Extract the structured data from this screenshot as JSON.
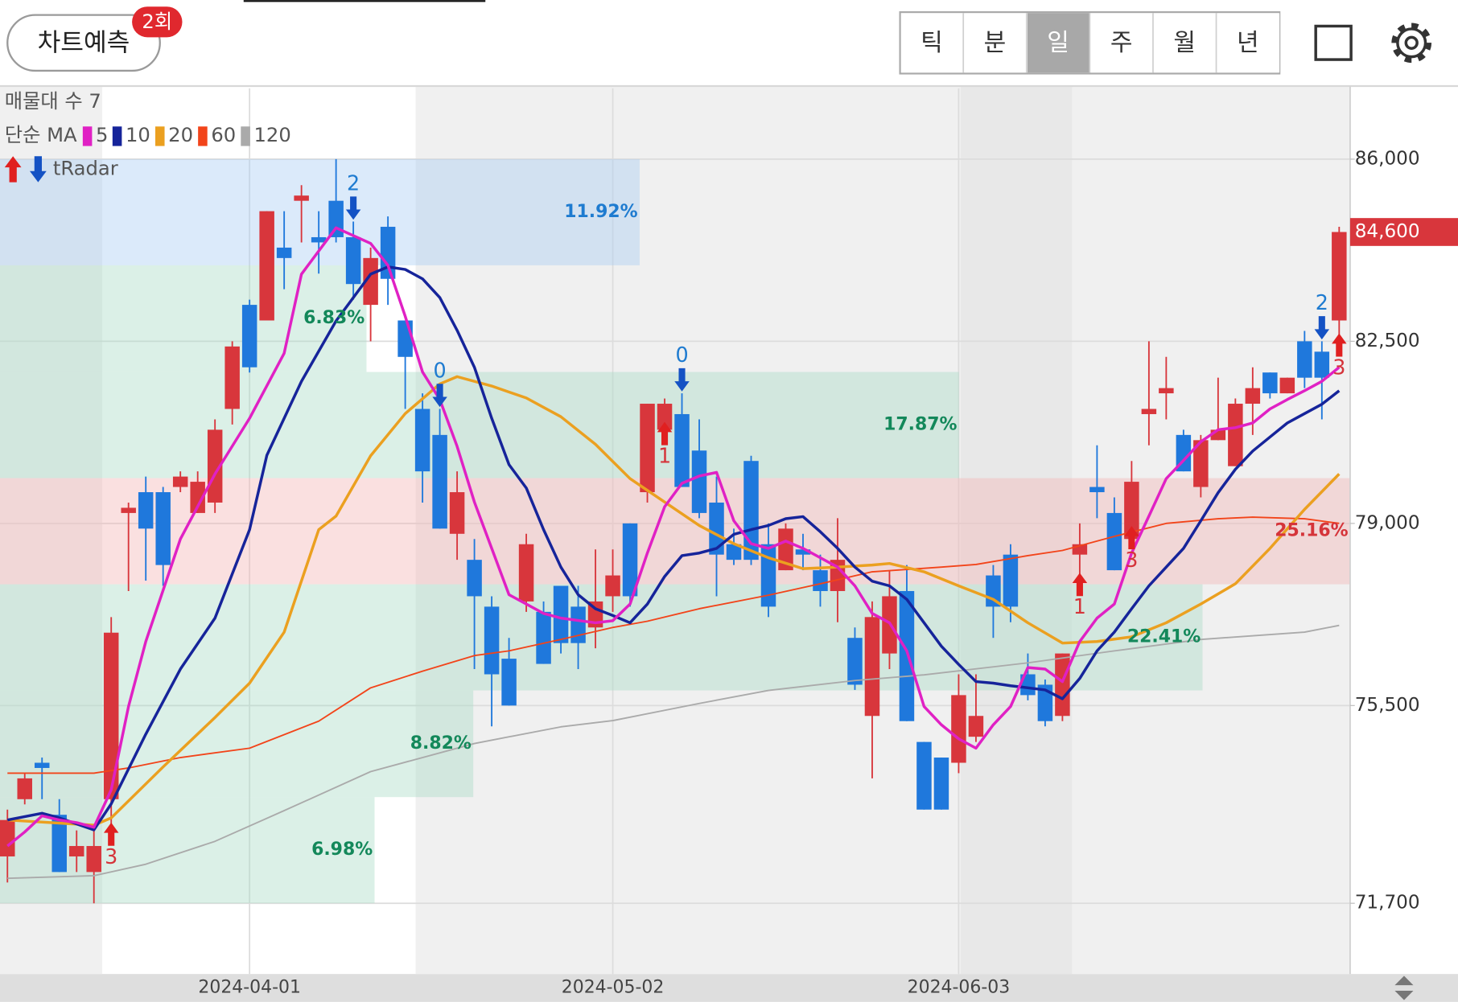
{
  "header": {
    "button": "차트예측",
    "badge": "2회",
    "tabs": [
      "틱",
      "분",
      "일",
      "주",
      "월",
      "년"
    ],
    "selected_tab": "일"
  },
  "legend": {
    "profile": "매물대 수 7",
    "ma_label": "단순 MA",
    "radar": "tRadar"
  },
  "chart_data": {
    "type": "candlestick",
    "categories": [
      null,
      null,
      null,
      null,
      null,
      null,
      null,
      null,
      null,
      null,
      null,
      null,
      null,
      null,
      "2024-04-01",
      null,
      null,
      null,
      null,
      null,
      null,
      null,
      null,
      null,
      null,
      null,
      null,
      null,
      null,
      null,
      null,
      null,
      null,
      null,
      null,
      "2024-05-02",
      null,
      null,
      null,
      null,
      null,
      null,
      null,
      null,
      null,
      null,
      null,
      null,
      null,
      null,
      null,
      null,
      null,
      null,
      null,
      "2024-06-03",
      null,
      null,
      null,
      null,
      null,
      null,
      null,
      null,
      null,
      null,
      null,
      null,
      null,
      null,
      null,
      null,
      null,
      null,
      null,
      null,
      null,
      null
    ],
    "open": [
      72600,
      73700,
      74400,
      73400,
      72600,
      72300,
      73700,
      79200,
      79600,
      79600,
      79700,
      79200,
      79400,
      81200,
      83200,
      82900,
      84300,
      85200,
      84500,
      85200,
      84500,
      83200,
      84700,
      82900,
      81200,
      80700,
      78800,
      78300,
      77400,
      76400,
      77500,
      77300,
      77800,
      77400,
      77000,
      77600,
      79000,
      79600,
      80800,
      81100,
      80400,
      79400,
      78600,
      80200,
      78600,
      78100,
      78500,
      78100,
      77700,
      76800,
      75300,
      76500,
      77700,
      74800,
      74500,
      74400,
      74900,
      78000,
      78400,
      76100,
      75900,
      75300,
      78400,
      79700,
      79200,
      78700,
      81100,
      81500,
      80700,
      79700,
      80600,
      80100,
      81300,
      81900,
      81500,
      82500,
      82300,
      82900
    ],
    "high": [
      73500,
      74200,
      74500,
      73700,
      73100,
      73100,
      77200,
      79400,
      79900,
      79700,
      80000,
      80000,
      81000,
      82500,
      83300,
      85000,
      85000,
      85500,
      85000,
      86000,
      84800,
      84300,
      84900,
      82900,
      81500,
      81200,
      80000,
      78700,
      77600,
      76800,
      78800,
      77500,
      77800,
      77800,
      78500,
      78500,
      79000,
      81300,
      81400,
      81500,
      81000,
      79900,
      78900,
      80300,
      79000,
      79000,
      78800,
      78400,
      79100,
      77000,
      77500,
      78100,
      78200,
      74800,
      74500,
      76100,
      76100,
      78200,
      78600,
      76500,
      76000,
      76500,
      79000,
      80500,
      79500,
      80200,
      82500,
      82200,
      80800,
      80700,
      81800,
      81400,
      82000,
      81900,
      81800,
      82700,
      82500,
      84700
    ],
    "low": [
      72100,
      73600,
      73700,
      72300,
      72300,
      71700,
      73000,
      77700,
      77900,
      77800,
      79600,
      79200,
      79200,
      80900,
      81900,
      82900,
      83500,
      84400,
      83800,
      84400,
      83300,
      82500,
      83200,
      81200,
      79400,
      78900,
      78300,
      76200,
      75100,
      75500,
      77300,
      76300,
      76500,
      76200,
      76600,
      77300,
      77400,
      79400,
      80700,
      79700,
      79100,
      77600,
      78200,
      78200,
      77200,
      78100,
      78100,
      77400,
      77100,
      75800,
      74100,
      76200,
      75200,
      73500,
      73500,
      74200,
      74800,
      76800,
      77100,
      75600,
      75100,
      75200,
      77800,
      79100,
      78100,
      78700,
      80500,
      81000,
      80000,
      79500,
      80600,
      80100,
      80700,
      81400,
      81500,
      81600,
      81000,
      82400
    ],
    "close": [
      73300,
      74100,
      74300,
      72300,
      72800,
      72800,
      76900,
      79300,
      78900,
      78200,
      79900,
      79800,
      80800,
      82400,
      82000,
      85000,
      84100,
      85300,
      84400,
      84500,
      83600,
      84100,
      83700,
      82200,
      80000,
      78900,
      79600,
      77600,
      76100,
      75500,
      78600,
      76300,
      76700,
      76700,
      77500,
      78000,
      77600,
      81300,
      81300,
      79700,
      79200,
      78400,
      78300,
      78300,
      77400,
      78900,
      78400,
      77700,
      78300,
      75900,
      77200,
      77600,
      75200,
      73500,
      73500,
      75700,
      75300,
      77400,
      77400,
      75700,
      75200,
      76500,
      78600,
      79600,
      78100,
      79800,
      81200,
      81600,
      80000,
      80600,
      80800,
      81300,
      81600,
      81500,
      81800,
      81800,
      81800,
      84600
    ],
    "up_color": "#d8363c",
    "down_color": "#1f78dc",
    "moving_averages": [
      {
        "name": "5",
        "color": "#e021c4",
        "x": [
          0,
          1,
          2,
          3,
          4,
          5,
          6,
          7,
          8,
          10,
          12,
          14,
          16,
          17,
          19,
          21,
          22,
          23,
          24,
          25,
          26,
          27,
          28,
          29,
          30,
          31,
          32,
          34,
          35,
          36,
          37,
          38,
          39,
          40,
          41,
          42,
          43,
          44,
          45,
          46,
          48,
          49,
          50,
          51,
          52,
          53,
          54,
          55,
          56,
          57,
          58,
          59,
          60,
          61,
          62,
          63,
          64,
          65,
          66,
          67,
          68,
          69,
          70,
          71,
          72,
          73,
          74,
          75,
          76,
          77
        ],
        "values": [
          72800,
          73070,
          73380,
          73300,
          73250,
          73160,
          73880,
          75480,
          76730,
          78700,
          79950,
          81020,
          82270,
          83790,
          84680,
          84380,
          83960,
          82980,
          81910,
          81380,
          80480,
          79410,
          78520,
          77630,
          77450,
          77270,
          77180,
          77090,
          77130,
          77450,
          78430,
          79320,
          79770,
          79910,
          79980,
          79050,
          78610,
          78520,
          78660,
          78520,
          78160,
          77800,
          77270,
          77090,
          76550,
          75480,
          75130,
          74860,
          74680,
          75130,
          75480,
          76230,
          76200,
          75960,
          76730,
          77180,
          77450,
          78430,
          79140,
          79860,
          80210,
          80570,
          80800,
          80840,
          80930,
          81200,
          81380,
          81550,
          81730,
          82000
        ]
      },
      {
        "name": "10",
        "color": "#16249a",
        "x": [
          0,
          2,
          3,
          5,
          6,
          8,
          10,
          12,
          14,
          15,
          17,
          19,
          21,
          22,
          23,
          24,
          25,
          26,
          27,
          28,
          29,
          30,
          31,
          32,
          33,
          34,
          35,
          36,
          37,
          38,
          39,
          40,
          41,
          42,
          43,
          44,
          45,
          46,
          47,
          48,
          49,
          50,
          51,
          52,
          53,
          54,
          55,
          56,
          57,
          58,
          59,
          60,
          61,
          62,
          63,
          64,
          65,
          66,
          67,
          68,
          69,
          70,
          71,
          72,
          73,
          74,
          75,
          76,
          77
        ],
        "values": [
          73300,
          73430,
          73340,
          73110,
          73610,
          74950,
          76200,
          77180,
          78880,
          80310,
          81730,
          82890,
          83790,
          83930,
          83880,
          83700,
          83340,
          82710,
          82000,
          81020,
          80130,
          79680,
          78880,
          78160,
          77630,
          77360,
          77230,
          77090,
          77450,
          77980,
          78380,
          78430,
          78520,
          78790,
          78880,
          78960,
          79090,
          79130,
          78840,
          78520,
          78160,
          77890,
          77800,
          77540,
          77090,
          76640,
          76290,
          75960,
          75930,
          75880,
          75840,
          75800,
          75630,
          76020,
          76550,
          76910,
          77360,
          77800,
          78160,
          78520,
          79050,
          79590,
          80040,
          80390,
          80660,
          80930,
          81110,
          81290,
          81550
        ]
      },
      {
        "name": "20",
        "color": "#eba020",
        "x": [
          0,
          5,
          6,
          9,
          12,
          14,
          16,
          18,
          19,
          21,
          23,
          25,
          26,
          28,
          30,
          32,
          34,
          36,
          38,
          40,
          42,
          44,
          46,
          48,
          50,
          51,
          53,
          55,
          57,
          59,
          61,
          63,
          65,
          67,
          69,
          71,
          73,
          75,
          77
        ],
        "values": [
          73300,
          73200,
          73340,
          74320,
          75270,
          75930,
          76910,
          78880,
          79140,
          80300,
          81110,
          81680,
          81820,
          81640,
          81410,
          81050,
          80520,
          79860,
          79410,
          78960,
          78610,
          78340,
          78130,
          78160,
          78200,
          78230,
          78070,
          77800,
          77540,
          77090,
          76700,
          76730,
          76820,
          77090,
          77450,
          77840,
          78520,
          79270,
          79950
        ]
      },
      {
        "name": "60",
        "color": "#f2441a",
        "x": [
          0,
          5,
          7,
          10,
          14,
          18,
          21,
          24,
          27,
          29,
          32,
          35,
          37,
          40,
          44,
          47,
          50,
          54,
          56,
          59,
          61,
          64,
          67,
          70,
          72,
          75,
          77
        ],
        "values": [
          74200,
          74200,
          74300,
          74500,
          74680,
          75200,
          75840,
          76160,
          76460,
          76550,
          76770,
          77000,
          77120,
          77360,
          77620,
          77840,
          78070,
          78160,
          78210,
          78380,
          78480,
          78750,
          79000,
          79090,
          79120,
          79090,
          79000
        ]
      },
      {
        "name": "120",
        "color": "#aaaaaa",
        "x": [
          0,
          5,
          8,
          12,
          16,
          21,
          27,
          32,
          35,
          40,
          44,
          49,
          53,
          59,
          64,
          69,
          75,
          77
        ],
        "values": [
          72180,
          72230,
          72450,
          72890,
          73480,
          74230,
          74770,
          75090,
          75210,
          75540,
          75790,
          75980,
          76090,
          76320,
          76550,
          76770,
          76910,
          77040
        ]
      }
    ],
    "volume_profile": {
      "lows": [
        83960,
        81910,
        79870,
        77830,
        75790,
        73740,
        71700
      ],
      "highs": [
        86000,
        83960,
        81910,
        79870,
        77830,
        75790,
        73740
      ],
      "values": [
        11.92,
        6.83,
        17.87,
        25.16,
        22.41,
        8.82,
        6.98
      ],
      "value_labels": [
        "11.92%",
        "6.83%",
        "17.87%",
        "25.16%",
        "22.41%",
        "8.82%",
        "6.98%"
      ],
      "colors": [
        "#a9cdf2",
        "#a9dcc6",
        "#a9dcc6",
        "#f4b5b5",
        "#a9dcc6",
        "#a9dcc6",
        "#a9dcc6"
      ],
      "label_colors": [
        "#1e7bd0",
        "#13885a",
        "#13885a",
        "#d5343a",
        "#13885a",
        "#13885a",
        "#13885a"
      ]
    },
    "down_signals": [
      null,
      null,
      null,
      null,
      null,
      null,
      null,
      null,
      null,
      null,
      null,
      null,
      null,
      null,
      null,
      null,
      null,
      null,
      null,
      null,
      2,
      null,
      null,
      null,
      null,
      0,
      null,
      null,
      null,
      null,
      null,
      null,
      null,
      null,
      null,
      null,
      null,
      null,
      null,
      0,
      null,
      null,
      null,
      null,
      null,
      null,
      null,
      null,
      null,
      null,
      null,
      null,
      null,
      null,
      null,
      null,
      null,
      null,
      null,
      null,
      null,
      null,
      null,
      null,
      null,
      null,
      null,
      null,
      null,
      null,
      null,
      null,
      null,
      null,
      null,
      null,
      2,
      null
    ],
    "up_signals": [
      null,
      null,
      null,
      null,
      null,
      null,
      3,
      null,
      null,
      null,
      null,
      null,
      null,
      null,
      null,
      null,
      null,
      null,
      null,
      null,
      null,
      null,
      null,
      null,
      null,
      null,
      null,
      null,
      null,
      null,
      null,
      null,
      null,
      null,
      null,
      null,
      null,
      null,
      1,
      null,
      null,
      null,
      null,
      null,
      null,
      null,
      null,
      null,
      null,
      null,
      null,
      null,
      null,
      null,
      null,
      null,
      null,
      null,
      null,
      null,
      null,
      null,
      1,
      null,
      null,
      3,
      null,
      null,
      null,
      null,
      null,
      null,
      null,
      null,
      null,
      null,
      null,
      3
    ],
    "last_price": {
      "value": 84600,
      "label": "84,600"
    },
    "ylim": [
      70340,
      87360
    ],
    "yticks": [
      {
        "value": 86000,
        "label": "86,000"
      },
      {
        "value": 82500,
        "label": "82,500"
      },
      {
        "value": 79000,
        "label": "79,000"
      },
      {
        "value": 75500,
        "label": "75,500"
      },
      {
        "value": 71700,
        "label": "71,700"
      }
    ],
    "grid": true
  }
}
